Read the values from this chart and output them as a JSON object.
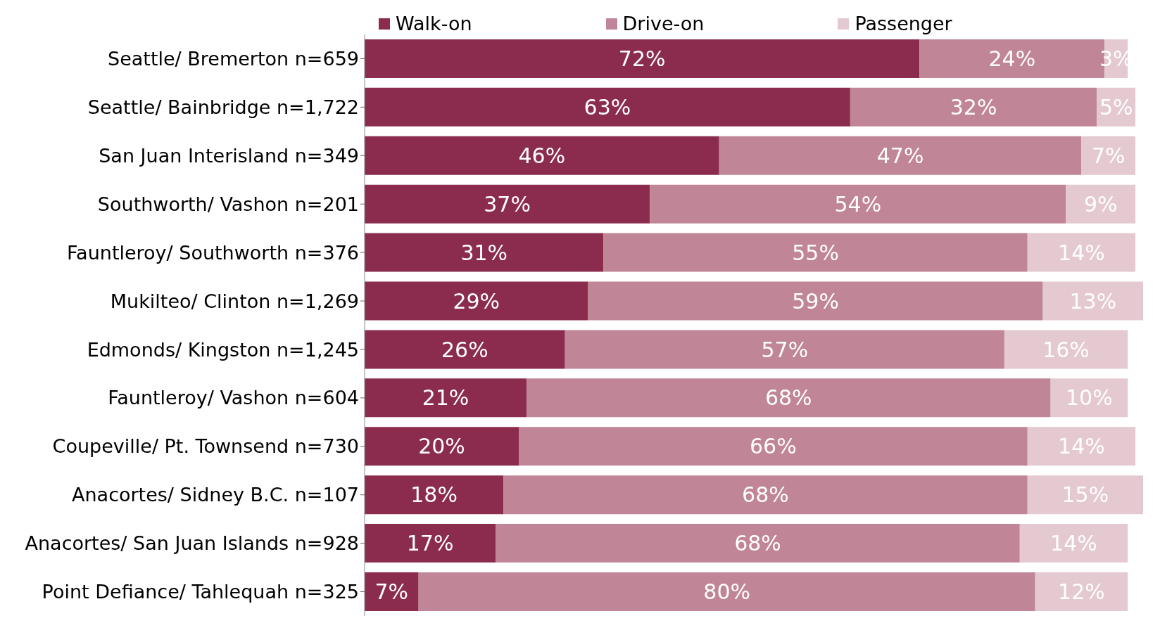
{
  "chart_data": {
    "type": "bar",
    "orientation": "horizontal",
    "stacked": true,
    "legend": "top",
    "categories": [
      "Seattle/ Bremerton n=659",
      "Seattle/ Bainbridge n=1,722",
      "San Juan Interisland n=349",
      "Southworth/ Vashon n=201",
      "Fauntleroy/ Southworth n=376",
      "Mukilteo/ Clinton n=1,269",
      "Edmonds/ Kingston n=1,245",
      "Fauntleroy/ Vashon n=604",
      "Coupeville/ Pt. Townsend n=730",
      "Anacortes/ Sidney B.C. n=107",
      "Anacortes/ San Juan Islands n=928",
      "Point Defiance/ Tahlequah n=325"
    ],
    "series": [
      {
        "name": "Walk-on",
        "color": "#8b2c4e",
        "values": [
          72,
          63,
          46,
          37,
          31,
          29,
          26,
          21,
          20,
          18,
          17,
          7
        ],
        "value_labels": [
          "72%",
          "63%",
          "46%",
          "37%",
          "31%",
          "29%",
          "26%",
          "21%",
          "20%",
          "18%",
          "17%",
          "7%"
        ]
      },
      {
        "name": "Drive-on",
        "color": "#c08596",
        "values": [
          24,
          32,
          47,
          54,
          55,
          59,
          57,
          68,
          66,
          68,
          68,
          80
        ],
        "value_labels": [
          "24%",
          "32%",
          "47%",
          "54%",
          "55%",
          "59%",
          "57%",
          "68%",
          "66%",
          "68%",
          "68%",
          "80%"
        ]
      },
      {
        "name": "Passenger",
        "color": "#e4c9d1",
        "values": [
          3,
          5,
          7,
          9,
          14,
          13,
          16,
          10,
          14,
          15,
          14,
          12
        ],
        "value_labels": [
          "3%",
          "5%",
          "7%",
          "9%",
          "14%",
          "13%",
          "16%",
          "10%",
          "14%",
          "15%",
          "14%",
          "12%"
        ]
      }
    ]
  }
}
